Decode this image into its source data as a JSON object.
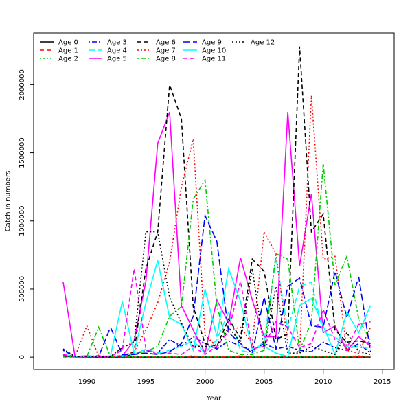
{
  "chart_data": {
    "type": "line",
    "title": "",
    "xlabel": "Year",
    "ylabel": "Catch in numbers",
    "xlim": [
      1985.5,
      2016
    ],
    "ylim": [
      -90000,
      2380000
    ],
    "x_ticks": [
      1990,
      1995,
      2000,
      2005,
      2010,
      2015
    ],
    "y_ticks": [
      0,
      500000,
      1000000,
      1500000,
      2000000
    ],
    "legend_position": "top-left",
    "grid": false,
    "x": [
      1988,
      1989,
      1990,
      1991,
      1992,
      1993,
      1994,
      1995,
      1996,
      1997,
      1998,
      1999,
      2000,
      2001,
      2002,
      2003,
      2004,
      2005,
      2006,
      2007,
      2008,
      2009,
      2010,
      2011,
      2012,
      2013,
      2014
    ],
    "series": [
      {
        "name": "Age 0",
        "color": "#000000",
        "dash": "solid",
        "values": [
          5000,
          2000,
          1000,
          0,
          0,
          0,
          0,
          0,
          0,
          0,
          0,
          0,
          0,
          0,
          0,
          0,
          0,
          0,
          0,
          0,
          0,
          0,
          0,
          0,
          0,
          0,
          0
        ]
      },
      {
        "name": "Age 1",
        "color": "#ff0000",
        "dash": "dashed",
        "values": [
          2000,
          1000,
          1000,
          0,
          0,
          0,
          0,
          0,
          0,
          0,
          0,
          0,
          0,
          0,
          1000,
          1000,
          2000,
          1000,
          1000,
          1000,
          1000,
          1000,
          1000,
          1000,
          1000,
          1000,
          1000
        ]
      },
      {
        "name": "Age 2",
        "color": "#00cd00",
        "dash": "dotted",
        "values": [
          10000,
          5000,
          5000,
          5000,
          5000,
          5000,
          3000,
          5000,
          5000,
          3000,
          5000,
          10000,
          3000,
          2000,
          5000,
          10000,
          5000,
          3000,
          5000,
          5000,
          3000,
          3000,
          5000,
          3000,
          5000,
          10000,
          5000
        ]
      },
      {
        "name": "Age 3",
        "color": "#0000ff",
        "dash": "dotdash",
        "values": [
          50000,
          5000,
          5000,
          10000,
          5000,
          5000,
          20000,
          50000,
          30000,
          130000,
          80000,
          150000,
          100000,
          60000,
          120000,
          80000,
          50000,
          100000,
          60000,
          80000,
          50000,
          40000,
          110000,
          70000,
          50000,
          100000,
          30000
        ]
      },
      {
        "name": "Age 4",
        "color": "#00ffff",
        "dash": "longdash",
        "values": [
          20000,
          5000,
          5000,
          5000,
          5000,
          5000,
          20000,
          60000,
          30000,
          50000,
          80000,
          120000,
          30000,
          130000,
          330000,
          50000,
          30000,
          120000,
          730000,
          200000,
          520000,
          550000,
          180000,
          150000,
          80000,
          80000,
          60000
        ]
      },
      {
        "name": "Age 5",
        "color": "#ff00ff",
        "dash": "solid",
        "values": [
          550000,
          5000,
          10000,
          5000,
          5000,
          10000,
          120000,
          560000,
          1570000,
          1800000,
          380000,
          200000,
          30000,
          420000,
          250000,
          730000,
          420000,
          150000,
          150000,
          1800000,
          670000,
          1200000,
          180000,
          230000,
          50000,
          150000,
          80000
        ]
      },
      {
        "name": "Age 6",
        "color": "#000000",
        "dash": "dashed",
        "values": [
          10000,
          5000,
          5000,
          5000,
          5000,
          10000,
          40000,
          650000,
          920000,
          2000000,
          1750000,
          370000,
          100000,
          80000,
          280000,
          140000,
          720000,
          630000,
          130000,
          170000,
          2280000,
          920000,
          1050000,
          200000,
          110000,
          120000,
          100000
        ]
      },
      {
        "name": "Age 7",
        "color": "#ff0000",
        "dash": "dotted",
        "values": [
          5000,
          5000,
          230000,
          5000,
          5000,
          5000,
          40000,
          200000,
          400000,
          700000,
          1250000,
          1600000,
          160000,
          80000,
          200000,
          220000,
          100000,
          920000,
          760000,
          100000,
          30000,
          1920000,
          720000,
          740000,
          50000,
          30000,
          220000
        ]
      },
      {
        "name": "Age 8",
        "color": "#00cd00",
        "dash": "dotdash",
        "values": [
          5000,
          5000,
          5000,
          220000,
          5000,
          10000,
          30000,
          40000,
          80000,
          300000,
          370000,
          1160000,
          1300000,
          380000,
          50000,
          20000,
          20000,
          50000,
          760000,
          720000,
          50000,
          260000,
          1420000,
          530000,
          740000,
          280000,
          120000
        ]
      },
      {
        "name": "Age 9",
        "color": "#0000ff",
        "dash": "longdash",
        "values": [
          10000,
          5000,
          5000,
          5000,
          220000,
          20000,
          20000,
          30000,
          20000,
          40000,
          100000,
          300000,
          1040000,
          850000,
          180000,
          100000,
          30000,
          440000,
          60000,
          520000,
          580000,
          230000,
          220000,
          630000,
          290000,
          590000,
          40000
        ]
      },
      {
        "name": "Age 10",
        "color": "#00ffff",
        "dash": "solid",
        "values": [
          20000,
          5000,
          5000,
          5000,
          10000,
          410000,
          30000,
          400000,
          710000,
          290000,
          240000,
          50000,
          500000,
          150000,
          650000,
          410000,
          60000,
          80000,
          30000,
          5000,
          380000,
          430000,
          230000,
          20000,
          330000,
          180000,
          380000
        ]
      },
      {
        "name": "Age 11",
        "color": "#ff00ff",
        "dash": "dashed",
        "values": [
          20000,
          5000,
          5000,
          5000,
          5000,
          50000,
          650000,
          60000,
          20000,
          30000,
          20000,
          80000,
          20000,
          80000,
          190000,
          560000,
          60000,
          80000,
          260000,
          220000,
          70000,
          100000,
          350000,
          130000,
          70000,
          240000,
          260000
        ]
      },
      {
        "name": "Age 12",
        "color": "#000000",
        "dash": "dotted",
        "values": [
          60000,
          5000,
          5000,
          5000,
          5000,
          70000,
          110000,
          920000,
          920000,
          440000,
          250000,
          80000,
          80000,
          70000,
          220000,
          110000,
          650000,
          60000,
          520000,
          30000,
          30000,
          80000,
          50000,
          20000,
          180000,
          40000,
          20000
        ]
      }
    ]
  }
}
